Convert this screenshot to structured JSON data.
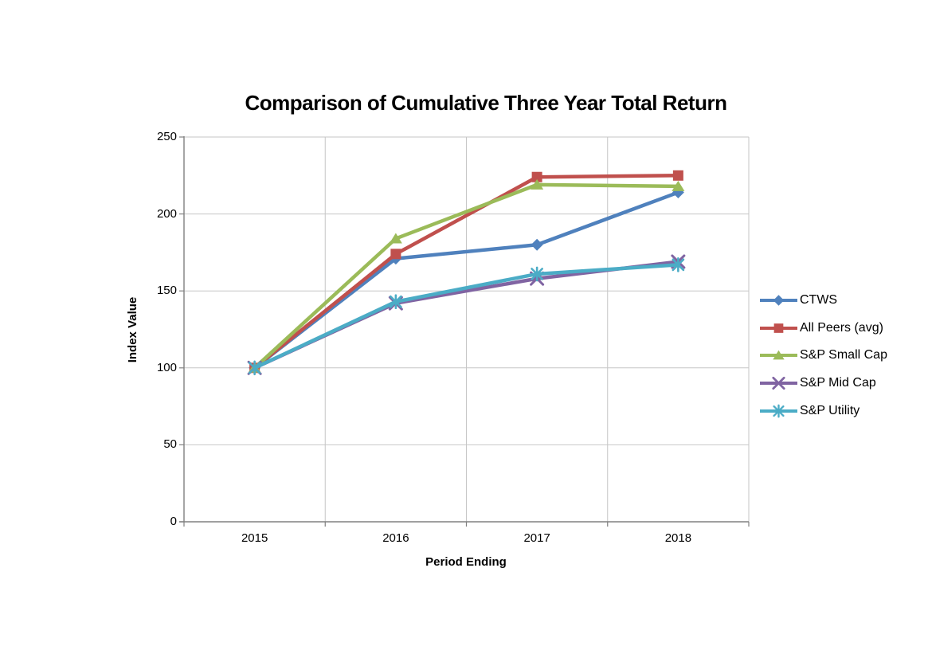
{
  "page": {
    "background_color": "#FFFFFF"
  },
  "chart_data": {
    "type": "line",
    "title": "Comparison of Cumulative Three Year Total Return",
    "xlabel": "Period Ending",
    "ylabel": "Index Value",
    "categories": [
      "2015",
      "2016",
      "2017",
      "2018"
    ],
    "ylim": [
      0,
      250
    ],
    "yticks": [
      0,
      50,
      100,
      150,
      200,
      250
    ],
    "grid": true,
    "legend_position": "right",
    "series": [
      {
        "name": "CTWS",
        "color": "#4F81BD",
        "marker": "diamond",
        "values": [
          100,
          171,
          180,
          214
        ]
      },
      {
        "name": "All Peers (avg)",
        "color": "#C0504D",
        "marker": "square",
        "values": [
          100,
          174,
          224,
          225
        ]
      },
      {
        "name": "S&P Small Cap",
        "color": "#9BBB59",
        "marker": "triangle",
        "values": [
          100,
          184,
          219,
          218
        ]
      },
      {
        "name": "S&P Mid Cap",
        "color": "#8064A2",
        "marker": "x",
        "values": [
          100,
          142,
          158,
          169
        ]
      },
      {
        "name": "S&P Utility",
        "color": "#4BACC6",
        "marker": "star",
        "values": [
          100,
          143,
          161,
          167
        ]
      }
    ],
    "style": {
      "axis_color": "#808080",
      "grid_color": "#C6C6C6",
      "text_color": "#000000",
      "line_width": 4.5
    }
  }
}
